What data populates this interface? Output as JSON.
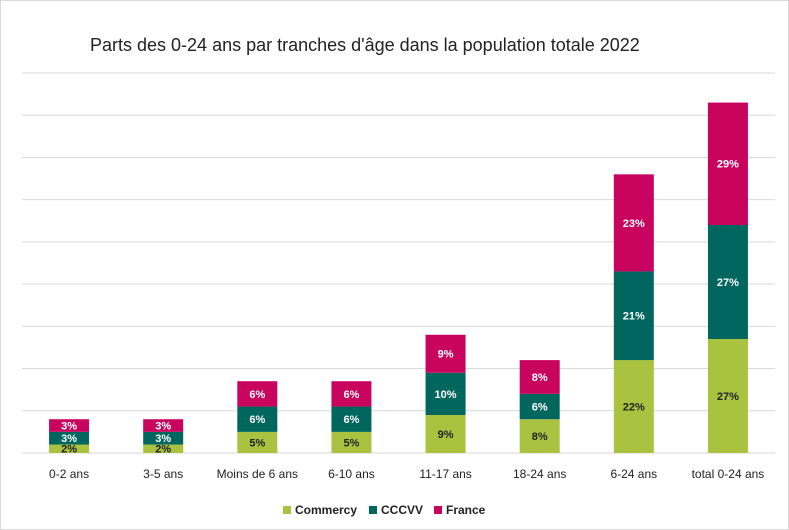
{
  "chart_data": {
    "type": "stacked_bar",
    "title": "Parts des 0-24 ans par tranches d'âge dans la population totale 2022",
    "categories": [
      "0-2 ans",
      "3-5 ans",
      "Moins de 6 ans",
      "6-10 ans",
      "11-17 ans",
      "18-24 ans",
      "6-24 ans",
      "total 0-24 ans"
    ],
    "series": [
      {
        "name": "Commercy",
        "color": "#a9c23f",
        "values": [
          2,
          2,
          5,
          5,
          9,
          8,
          22,
          27
        ],
        "value_labels": [
          "2%",
          "2%",
          "5%",
          "5%",
          "9%",
          "8%",
          "22%",
          "27%"
        ]
      },
      {
        "name": "CCCVV",
        "color": "#00665e",
        "values": [
          3,
          3,
          6,
          6,
          10,
          6,
          21,
          27
        ],
        "value_labels": [
          "3%",
          "3%",
          "6%",
          "6%",
          "10%",
          "6%",
          "21%",
          "27%"
        ]
      },
      {
        "name": "France",
        "color": "#c8045f",
        "values": [
          3,
          3,
          6,
          6,
          9,
          8,
          23,
          29
        ],
        "value_labels": [
          "3%",
          "3%",
          "6%",
          "6%",
          "9%",
          "8%",
          "23%",
          "29%"
        ]
      }
    ],
    "ylim": [
      0,
      90
    ],
    "yticks": [
      0,
      10,
      20,
      30,
      40,
      50,
      60,
      70,
      80,
      90
    ],
    "grid": true,
    "legend": "bottom"
  }
}
